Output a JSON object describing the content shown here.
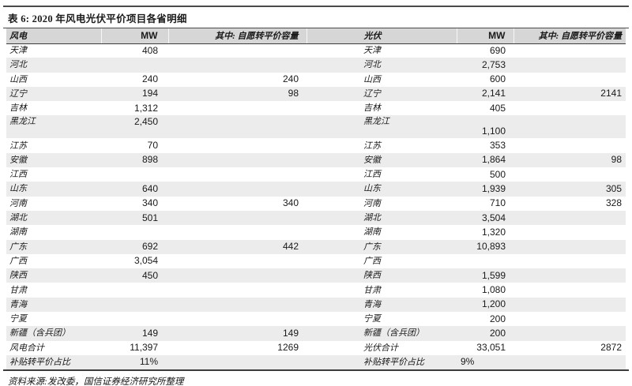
{
  "table": {
    "title": "表 6: 2020 年风电光伏平价项目各省明细",
    "columns": {
      "wind_label": "风电",
      "wind_mw": "MW",
      "wind_conv": "其中: 自愿转平价容量",
      "pv_label": "光伏",
      "pv_mw": "MW",
      "pv_conv": "其中: 自愿转平价容量"
    },
    "rows": [
      {
        "wind": "天津",
        "wind_mw": "408",
        "wind_conv": "",
        "pv": "天津",
        "pv_mw": "690",
        "pv_conv": ""
      },
      {
        "wind": "河北",
        "wind_mw": "",
        "wind_conv": "",
        "pv": "河北",
        "pv_mw": "2,753",
        "pv_conv": ""
      },
      {
        "wind": "山西",
        "wind_mw": "240",
        "wind_conv": "240",
        "pv": "山西",
        "pv_mw": "600",
        "pv_conv": ""
      },
      {
        "wind": "辽宁",
        "wind_mw": "194",
        "wind_conv": "98",
        "pv": "辽宁",
        "pv_mw": "2,141",
        "pv_conv": "2141"
      },
      {
        "wind": "吉林",
        "wind_mw": "1,312",
        "wind_conv": "",
        "pv": "吉林",
        "pv_mw": "405",
        "pv_conv": ""
      },
      {
        "wind": "黑龙江",
        "wind_mw": "2,450",
        "wind_conv": "",
        "pv": "黑龙江",
        "pv_mw": "1,100",
        "pv_conv": "",
        "tall": true
      },
      {
        "wind": "江苏",
        "wind_mw": "70",
        "wind_conv": "",
        "pv": "江苏",
        "pv_mw": "353",
        "pv_conv": ""
      },
      {
        "wind": "安徽",
        "wind_mw": "898",
        "wind_conv": "",
        "pv": "安徽",
        "pv_mw": "1,864",
        "pv_conv": "98"
      },
      {
        "wind": "江西",
        "wind_mw": "",
        "wind_conv": "",
        "pv": "江西",
        "pv_mw": "500",
        "pv_conv": ""
      },
      {
        "wind": "山东",
        "wind_mw": "640",
        "wind_conv": "",
        "pv": "山东",
        "pv_mw": "1,939",
        "pv_conv": "305"
      },
      {
        "wind": "河南",
        "wind_mw": "340",
        "wind_conv": "340",
        "pv": "河南",
        "pv_mw": "710",
        "pv_conv": "328"
      },
      {
        "wind": "湖北",
        "wind_mw": "501",
        "wind_conv": "",
        "pv": "湖北",
        "pv_mw": "3,504",
        "pv_conv": ""
      },
      {
        "wind": "湖南",
        "wind_mw": "",
        "wind_conv": "",
        "pv": "湖南",
        "pv_mw": "1,320",
        "pv_conv": ""
      },
      {
        "wind": "广东",
        "wind_mw": "692",
        "wind_conv": "442",
        "pv": "广东",
        "pv_mw": "10,893",
        "pv_conv": ""
      },
      {
        "wind": "广西",
        "wind_mw": "3,054",
        "wind_conv": "",
        "pv": "广西",
        "pv_mw": "",
        "pv_conv": ""
      },
      {
        "wind": "陕西",
        "wind_mw": "450",
        "wind_conv": "",
        "pv": "陕西",
        "pv_mw": "1,599",
        "pv_conv": ""
      },
      {
        "wind": "甘肃",
        "wind_mw": "",
        "wind_conv": "",
        "pv": "甘肃",
        "pv_mw": "1,080",
        "pv_conv": ""
      },
      {
        "wind": "青海",
        "wind_mw": "",
        "wind_conv": "",
        "pv": "青海",
        "pv_mw": "1,200",
        "pv_conv": ""
      },
      {
        "wind": "宁夏",
        "wind_mw": "",
        "wind_conv": "",
        "pv": "宁夏",
        "pv_mw": "200",
        "pv_conv": ""
      },
      {
        "wind": "新疆（含兵团）",
        "wind_mw": "149",
        "wind_conv": "149",
        "pv": "新疆（含兵团）",
        "pv_mw": "200",
        "pv_conv": ""
      },
      {
        "wind": "风电合计",
        "wind_mw": "11,397",
        "wind_conv": "1269",
        "pv": "光伏合计",
        "pv_mw": "33,051",
        "pv_conv": "2872"
      },
      {
        "wind": "补贴转平价占比",
        "wind_mw": "11%",
        "wind_conv": "",
        "pv": "补贴转平价占比",
        "pv_mw": "9%",
        "pv_conv": ""
      }
    ],
    "source": "资料来源:发改委，国信证券经济研究所整理"
  },
  "colors": {
    "stripe": "#ececec",
    "header_bg": "#d6d6d6",
    "rule": "#3c3c3c",
    "text": "#1a1a1a"
  }
}
